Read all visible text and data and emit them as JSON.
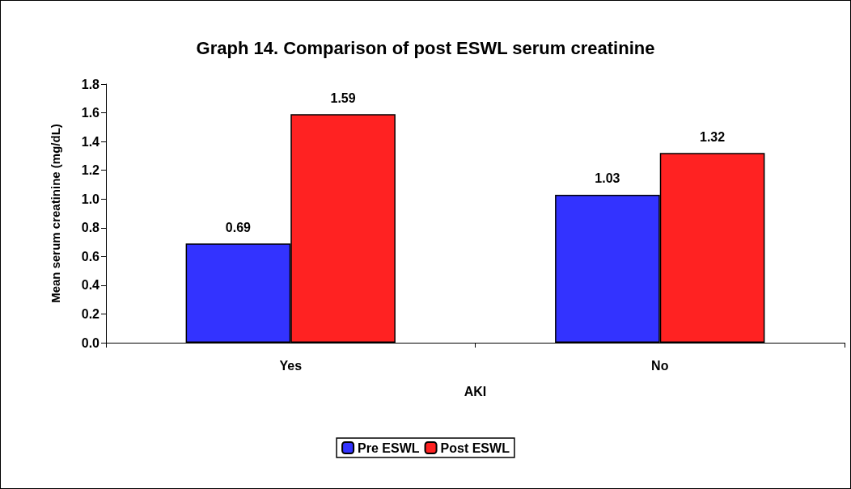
{
  "chart_data": {
    "type": "bar",
    "title": "Graph 14. Comparison of post ESWL serum creatinine",
    "xlabel": "AKI",
    "ylabel": "Mean serum creatinine (mg/dL)",
    "categories": [
      "Yes",
      "No"
    ],
    "series": [
      {
        "name": "Pre ESWL",
        "color": "#3333ff",
        "values": [
          0.69,
          1.03
        ]
      },
      {
        "name": "Post ESWL",
        "color": "#ff2222",
        "values": [
          1.59,
          1.32
        ]
      }
    ],
    "ylim": [
      0,
      1.8
    ],
    "yticks": [
      {
        "value": 0,
        "label": "0.0"
      },
      0.2,
      0.4,
      0.6,
      0.8,
      {
        "value": 1,
        "label": "1.0"
      },
      1.2,
      1.4,
      1.6,
      1.8
    ],
    "grid": false,
    "legend": "bottom",
    "data_labels": true
  }
}
